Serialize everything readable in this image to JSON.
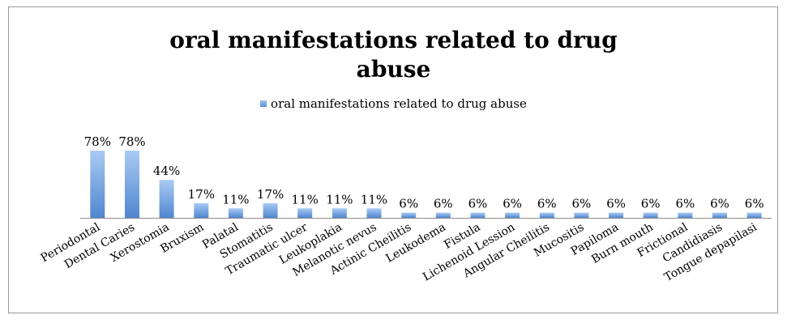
{
  "chart_data": {
    "type": "bar",
    "title": "oral manifestations related to drug abuse",
    "title_lines": [
      "oral manifestations related to drug",
      "abuse"
    ],
    "legend_position": "top",
    "grid": false,
    "categories": [
      "Periodontal",
      "Dental Caries",
      "Xerostomia",
      "Bruxism",
      "Palatal",
      "Stomatitis",
      "Traumatic ulcer",
      "Leukoplakia",
      "Melanotic nevus",
      "Actinic Cheilitis",
      "Leukodema",
      "Fistula",
      "Lichenoid Lession",
      "Angular Cheilitis",
      "Mucositis",
      "Papiloma",
      "Burn mouth",
      "Frictional",
      "Candidiasis",
      "Tongue depapilasi"
    ],
    "series": [
      {
        "name": "oral manifestations related to drug abuse",
        "values": [
          78,
          78,
          44,
          17,
          11,
          17,
          11,
          11,
          11,
          6,
          6,
          6,
          6,
          6,
          6,
          6,
          6,
          6,
          6,
          6
        ],
        "labels": [
          "78%",
          "78%",
          "44%",
          "17%",
          "11%",
          "17%",
          "11%",
          "11%",
          "11%",
          "6%",
          "6%",
          "6%",
          "6%",
          "6%",
          "6%",
          "6%",
          "6%",
          "6%",
          "6%",
          "6%"
        ]
      }
    ],
    "ylim": [
      0,
      80
    ],
    "bar_color": "#6b9ddb"
  }
}
